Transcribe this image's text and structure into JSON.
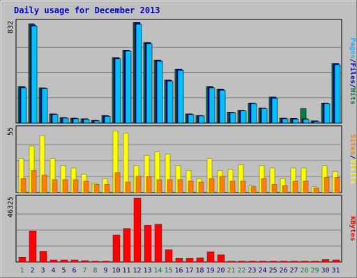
{
  "colors": {
    "background": "#c0c0c0",
    "frame": "#808080",
    "title": "#0000c0",
    "hits": "#008040",
    "files": "#0000c0",
    "pages": "#00c0ff",
    "visits": "#ffff00",
    "sites": "#ff8000",
    "kbytes": "#ff0000",
    "weekday_label": "#000080",
    "weekend_label": "#008040"
  },
  "chart_data": {
    "type": "bar",
    "title": "Daily usage for December 2013",
    "x": [
      "1",
      "2",
      "3",
      "4",
      "5",
      "6",
      "7",
      "8",
      "9",
      "10",
      "11",
      "12",
      "13",
      "14",
      "15",
      "16",
      "17",
      "18",
      "19",
      "20",
      "21",
      "22",
      "23",
      "24",
      "25",
      "26",
      "27",
      "28",
      "29",
      "30",
      "31"
    ],
    "weekend_days": [
      1,
      7,
      8,
      14,
      15,
      21,
      22,
      28,
      29
    ],
    "panels": [
      {
        "name": "hits-files-pages",
        "ymax_label": "832",
        "ylim": [
          0,
          832
        ],
        "legend": [
          {
            "label": "Pages",
            "color_key": "pages"
          },
          {
            "label": "/",
            "color_key": "weekday_label"
          },
          {
            "label": "Files",
            "color_key": "files"
          },
          {
            "label": "/",
            "color_key": "weekday_label"
          },
          {
            "label": "Hits",
            "color_key": "hits"
          }
        ],
        "series": [
          {
            "name": "Hits",
            "color_key": "hits",
            "values": [
              300,
              820,
              290,
              75,
              45,
              40,
              35,
              22,
              62,
              540,
              600,
              830,
              665,
              520,
              355,
              445,
              75,
              62,
              300,
              280,
              90,
              105,
              165,
              125,
              215,
              40,
              38,
              120,
              18,
              165,
              490
            ]
          },
          {
            "name": "Files",
            "color_key": "files",
            "values": [
              300,
              810,
              290,
              75,
              45,
              40,
              35,
              22,
              62,
              540,
              600,
              830,
              665,
              520,
              355,
              445,
              75,
              62,
              300,
              280,
              90,
              105,
              165,
              125,
              215,
              40,
              38,
              35,
              18,
              165,
              490
            ]
          },
          {
            "name": "Pages",
            "color_key": "pages",
            "values": [
              290,
              800,
              285,
              70,
              40,
              35,
              30,
              18,
              55,
              530,
              595,
              815,
              655,
              510,
              345,
              435,
              70,
              58,
              290,
              270,
              85,
              100,
              160,
              120,
              205,
              35,
              32,
              30,
              12,
              160,
              480
            ]
          }
        ]
      },
      {
        "name": "visits-sites",
        "ymax_label": "55",
        "ylim": [
          0,
          55
        ],
        "legend": [
          {
            "label": "Sites",
            "color_key": "sites"
          },
          {
            "label": "/",
            "color_key": "weekday_label"
          },
          {
            "label": "Visits",
            "color_key": "visits"
          }
        ],
        "series": [
          {
            "name": "Visits",
            "color_key": "visits",
            "values": [
              29,
              40,
              49,
              29,
              23,
              21,
              16,
              8,
              12,
              53,
              51,
              23,
              32,
              35,
              33,
              23,
              19,
              12,
              29,
              19,
              20,
              24,
              6,
              23,
              21,
              12,
              21,
              21,
              5,
              23,
              18
            ]
          },
          {
            "name": "Sites",
            "color_key": "sites",
            "values": [
              12,
              19,
              15,
              11,
              11,
              11,
              10,
              7,
              7,
              17,
              9,
              14,
              14,
              11,
              11,
              11,
              10,
              9,
              12,
              14,
              10,
              10,
              5,
              12,
              7,
              6,
              10,
              10,
              4,
              13,
              13
            ]
          }
        ]
      },
      {
        "name": "kbytes",
        "ymax_label": "46325",
        "ylim": [
          0,
          46325
        ],
        "legend": [
          {
            "label": "KBytes",
            "color_key": "kbytes"
          }
        ],
        "series": [
          {
            "name": "KBytes",
            "color_key": "kbytes",
            "values": [
              3400,
              22500,
              7800,
              1500,
              1500,
              1500,
              1000,
              600,
              600,
              19600,
              24300,
              46300,
              26600,
              27400,
              8900,
              2900,
              2800,
              3000,
              7400,
              5200,
              600,
              600,
              600,
              600,
              600,
              600,
              600,
              600,
              600,
              1800,
              1500
            ]
          }
        ]
      }
    ]
  }
}
